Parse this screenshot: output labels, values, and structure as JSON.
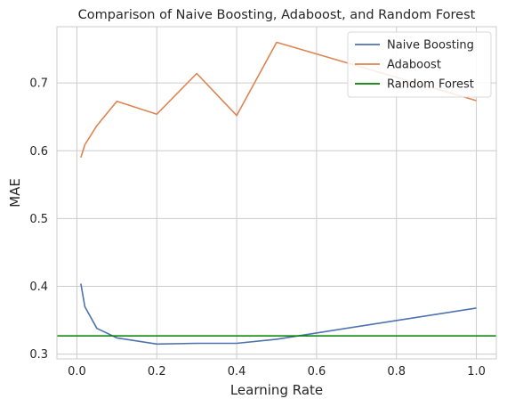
{
  "chart_data": {
    "type": "line",
    "title": "Comparison of Naive Boosting, Adaboost, and Random Forest",
    "xlabel": "Learning Rate",
    "ylabel": "MAE",
    "xlim": [
      -0.05,
      1.05
    ],
    "ylim": [
      0.293,
      0.783
    ],
    "xticks": [
      0.0,
      0.2,
      0.4,
      0.6,
      0.8,
      1.0
    ],
    "xtick_labels": [
      "0.0",
      "0.2",
      "0.4",
      "0.6",
      "0.8",
      "1.0"
    ],
    "yticks": [
      0.3,
      0.4,
      0.5,
      0.6,
      0.7
    ],
    "ytick_labels": [
      "0.3",
      "0.4",
      "0.5",
      "0.6",
      "0.7"
    ],
    "grid": true,
    "legend_position": "top-right",
    "series": [
      {
        "name": "Naive Boosting",
        "color": "#4c72b0",
        "x": [
          0.01,
          0.02,
          0.05,
          0.1,
          0.2,
          0.3,
          0.4,
          0.5,
          1.0
        ],
        "y": [
          0.404,
          0.37,
          0.338,
          0.324,
          0.315,
          0.316,
          0.316,
          0.322,
          0.368
        ]
      },
      {
        "name": "Adaboost",
        "color": "#dd8452",
        "x": [
          0.01,
          0.02,
          0.05,
          0.1,
          0.2,
          0.3,
          0.4,
          0.5,
          1.0
        ],
        "y": [
          0.59,
          0.609,
          0.637,
          0.673,
          0.654,
          0.714,
          0.652,
          0.76,
          0.674
        ]
      },
      {
        "name": "Random Forest",
        "color": "#008000",
        "type": "hline",
        "y": 0.327
      }
    ]
  }
}
